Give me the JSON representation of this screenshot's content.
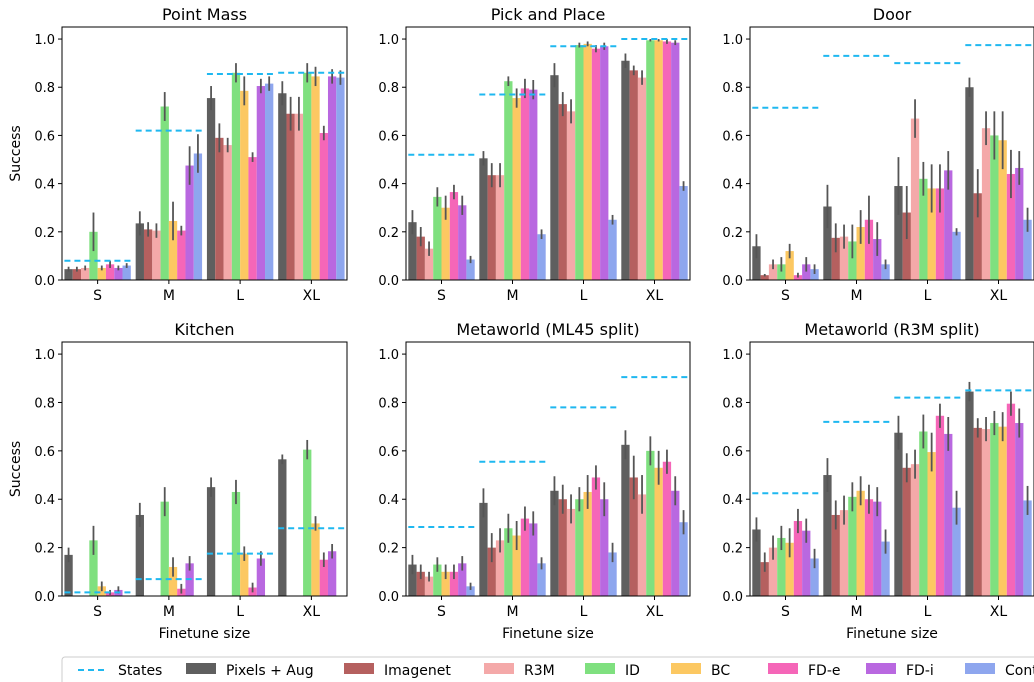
{
  "legend": {
    "entries": [
      "States",
      "Pixels + Aug",
      "Imagenet",
      "R3M",
      "ID",
      "BC",
      "FD-e",
      "FD-i",
      "Contr"
    ]
  },
  "colors": {
    "States": "#1fb8f0",
    "Pixels + Aug": "#5f5f5f",
    "Imagenet": "#b5605f",
    "R3M": "#f4a9a9",
    "ID": "#7fe07f",
    "BC": "#fcc862",
    "FD-e": "#f566b8",
    "FD-i": "#b968e0",
    "Contr": "#8ea6ee"
  },
  "chart_data": [
    {
      "type": "bar",
      "title": "Point Mass",
      "xlabel": "",
      "ylabel": "Success",
      "categories": [
        "S",
        "M",
        "L",
        "XL"
      ],
      "ylim": [
        0,
        1.05
      ],
      "yticks": [
        "0.0",
        "0.2",
        "0.4",
        "0.6",
        "0.8",
        "1.0"
      ],
      "states": [
        0.08,
        0.62,
        0.855,
        0.86
      ],
      "series": [
        {
          "name": "Pixels + Aug",
          "values": [
            0.045,
            0.235,
            0.755,
            0.775
          ],
          "err": [
            0.01,
            0.05,
            0.05,
            0.05
          ]
        },
        {
          "name": "Imagenet",
          "values": [
            0.045,
            0.21,
            0.59,
            0.69
          ],
          "err": [
            0.01,
            0.03,
            0.06,
            0.07
          ]
        },
        {
          "name": "R3M",
          "values": [
            0.05,
            0.205,
            0.56,
            0.69
          ],
          "err": [
            0.01,
            0.03,
            0.03,
            0.07
          ]
        },
        {
          "name": "ID",
          "values": [
            0.2,
            0.72,
            0.86,
            0.86
          ],
          "err": [
            0.08,
            0.06,
            0.04,
            0.04
          ]
        },
        {
          "name": "BC",
          "values": [
            0.05,
            0.245,
            0.785,
            0.845
          ],
          "err": [
            0.01,
            0.08,
            0.06,
            0.04
          ]
        },
        {
          "name": "FD-e",
          "values": [
            0.065,
            0.205,
            0.51,
            0.61
          ],
          "err": [
            0.015,
            0.02,
            0.02,
            0.03
          ]
        },
        {
          "name": "FD-i",
          "values": [
            0.05,
            0.475,
            0.805,
            0.845
          ],
          "err": [
            0.01,
            0.08,
            0.03,
            0.03
          ]
        },
        {
          "name": "Contr",
          "values": [
            0.06,
            0.525,
            0.815,
            0.84
          ],
          "err": [
            0.01,
            0.08,
            0.03,
            0.03
          ]
        }
      ]
    },
    {
      "type": "bar",
      "title": "Pick and Place",
      "xlabel": "",
      "ylabel": "",
      "categories": [
        "S",
        "M",
        "L",
        "XL"
      ],
      "ylim": [
        0,
        1.05
      ],
      "yticks": [
        "0.0",
        "0.2",
        "0.4",
        "0.6",
        "0.8",
        "1.0"
      ],
      "states": [
        0.52,
        0.77,
        0.97,
        1.0
      ],
      "series": [
        {
          "name": "Pixels + Aug",
          "values": [
            0.24,
            0.505,
            0.85,
            0.91
          ],
          "err": [
            0.05,
            0.03,
            0.05,
            0.03
          ]
        },
        {
          "name": "Imagenet",
          "values": [
            0.18,
            0.435,
            0.73,
            0.87
          ],
          "err": [
            0.04,
            0.05,
            0.05,
            0.02
          ]
        },
        {
          "name": "R3M",
          "values": [
            0.13,
            0.435,
            0.7,
            0.84
          ],
          "err": [
            0.03,
            0.05,
            0.05,
            0.03
          ]
        },
        {
          "name": "ID",
          "values": [
            0.345,
            0.825,
            0.975,
            0.995
          ],
          "err": [
            0.04,
            0.02,
            0.01,
            0.005
          ]
        },
        {
          "name": "BC",
          "values": [
            0.3,
            0.755,
            0.98,
            0.995
          ],
          "err": [
            0.05,
            0.04,
            0.01,
            0.005
          ]
        },
        {
          "name": "FD-e",
          "values": [
            0.365,
            0.795,
            0.96,
            0.99
          ],
          "err": [
            0.03,
            0.04,
            0.015,
            0.01
          ]
        },
        {
          "name": "FD-i",
          "values": [
            0.31,
            0.79,
            0.97,
            0.985
          ],
          "err": [
            0.04,
            0.04,
            0.015,
            0.01
          ]
        },
        {
          "name": "Contr",
          "values": [
            0.085,
            0.19,
            0.25,
            0.39
          ],
          "err": [
            0.015,
            0.02,
            0.02,
            0.02
          ]
        }
      ]
    },
    {
      "type": "bar",
      "title": "Door",
      "xlabel": "",
      "ylabel": "",
      "categories": [
        "S",
        "M",
        "L",
        "XL"
      ],
      "ylim": [
        0,
        1.05
      ],
      "yticks": [
        "0.0",
        "0.2",
        "0.4",
        "0.6",
        "0.8",
        "1.0"
      ],
      "states": [
        0.715,
        0.93,
        0.9,
        0.975
      ],
      "series": [
        {
          "name": "Pixels + Aug",
          "values": [
            0.14,
            0.305,
            0.39,
            0.8
          ],
          "err": [
            0.05,
            0.09,
            0.12,
            0.04
          ]
        },
        {
          "name": "Imagenet",
          "values": [
            0.02,
            0.175,
            0.28,
            0.36
          ],
          "err": [
            0.005,
            0.06,
            0.11,
            0.1
          ]
        },
        {
          "name": "R3M",
          "values": [
            0.065,
            0.18,
            0.67,
            0.63
          ],
          "err": [
            0.02,
            0.05,
            0.08,
            0.07
          ]
        },
        {
          "name": "ID",
          "values": [
            0.065,
            0.16,
            0.42,
            0.6
          ],
          "err": [
            0.03,
            0.07,
            0.07,
            0.1
          ]
        },
        {
          "name": "BC",
          "values": [
            0.12,
            0.22,
            0.38,
            0.58
          ],
          "err": [
            0.03,
            0.07,
            0.1,
            0.12
          ]
        },
        {
          "name": "FD-e",
          "values": [
            0.02,
            0.25,
            0.38,
            0.44
          ],
          "err": [
            0.01,
            0.1,
            0.1,
            0.1
          ]
        },
        {
          "name": "FD-i",
          "values": [
            0.065,
            0.17,
            0.455,
            0.465
          ],
          "err": [
            0.03,
            0.07,
            0.08,
            0.07
          ]
        },
        {
          "name": "Contr",
          "values": [
            0.045,
            0.065,
            0.2,
            0.25
          ],
          "err": [
            0.02,
            0.02,
            0.015,
            0.05
          ]
        }
      ]
    },
    {
      "type": "bar",
      "title": "Kitchen",
      "xlabel": "Finetune size",
      "ylabel": "Success",
      "categories": [
        "S",
        "M",
        "L",
        "XL"
      ],
      "ylim": [
        0,
        1.05
      ],
      "yticks": [
        "0.0",
        "0.2",
        "0.4",
        "0.6",
        "0.8",
        "1.0"
      ],
      "states": [
        0.015,
        0.07,
        0.175,
        0.28
      ],
      "series": [
        {
          "name": "Pixels + Aug",
          "values": [
            0.17,
            0.335,
            0.45,
            0.565
          ],
          "err": [
            0.03,
            0.05,
            0.04,
            0.02
          ]
        },
        {
          "name": "Imagenet",
          "values": [
            0.0,
            0.0,
            0.0,
            0.0
          ],
          "err": [
            0,
            0,
            0,
            0
          ]
        },
        {
          "name": "R3M",
          "values": [
            0.0,
            0.0,
            0.0,
            0.0
          ],
          "err": [
            0,
            0,
            0,
            0
          ]
        },
        {
          "name": "ID",
          "values": [
            0.23,
            0.39,
            0.43,
            0.605
          ],
          "err": [
            0.06,
            0.06,
            0.05,
            0.04
          ]
        },
        {
          "name": "BC",
          "values": [
            0.04,
            0.12,
            0.175,
            0.3
          ],
          "err": [
            0.02,
            0.04,
            0.03,
            0.03
          ]
        },
        {
          "name": "FD-e",
          "values": [
            0.015,
            0.03,
            0.035,
            0.15
          ],
          "err": [
            0.01,
            0.02,
            0.02,
            0.03
          ]
        },
        {
          "name": "FD-i",
          "values": [
            0.025,
            0.135,
            0.155,
            0.185
          ],
          "err": [
            0.015,
            0.03,
            0.03,
            0.03
          ]
        },
        {
          "name": "Contr",
          "values": [
            0.0,
            0.0,
            0.0,
            0.0
          ],
          "err": [
            0,
            0,
            0,
            0
          ]
        }
      ]
    },
    {
      "type": "bar",
      "title": "Metaworld (ML45 split)",
      "xlabel": "Finetune size",
      "ylabel": "",
      "categories": [
        "S",
        "M",
        "L",
        "XL"
      ],
      "ylim": [
        0,
        1.05
      ],
      "yticks": [
        "0.0",
        "0.2",
        "0.4",
        "0.6",
        "0.8",
        "1.0"
      ],
      "states": [
        0.285,
        0.555,
        0.78,
        0.905
      ],
      "series": [
        {
          "name": "Pixels + Aug",
          "values": [
            0.13,
            0.385,
            0.435,
            0.625
          ],
          "err": [
            0.04,
            0.06,
            0.06,
            0.06
          ]
        },
        {
          "name": "Imagenet",
          "values": [
            0.1,
            0.2,
            0.4,
            0.49
          ],
          "err": [
            0.03,
            0.06,
            0.06,
            0.09
          ]
        },
        {
          "name": "R3M",
          "values": [
            0.08,
            0.23,
            0.36,
            0.42
          ],
          "err": [
            0.02,
            0.05,
            0.06,
            0.08
          ]
        },
        {
          "name": "ID",
          "values": [
            0.13,
            0.28,
            0.4,
            0.6
          ],
          "err": [
            0.03,
            0.06,
            0.05,
            0.06
          ]
        },
        {
          "name": "BC",
          "values": [
            0.1,
            0.25,
            0.43,
            0.53
          ],
          "err": [
            0.03,
            0.06,
            0.07,
            0.07
          ]
        },
        {
          "name": "FD-e",
          "values": [
            0.1,
            0.32,
            0.49,
            0.555
          ],
          "err": [
            0.03,
            0.05,
            0.05,
            0.05
          ]
        },
        {
          "name": "FD-i",
          "values": [
            0.135,
            0.3,
            0.4,
            0.435
          ],
          "err": [
            0.03,
            0.05,
            0.07,
            0.06
          ]
        },
        {
          "name": "Contr",
          "values": [
            0.04,
            0.135,
            0.18,
            0.305
          ],
          "err": [
            0.015,
            0.025,
            0.04,
            0.05
          ]
        }
      ]
    },
    {
      "type": "bar",
      "title": "Metaworld (R3M split)",
      "xlabel": "Finetune size",
      "ylabel": "",
      "categories": [
        "S",
        "M",
        "L",
        "XL"
      ],
      "ylim": [
        0,
        1.05
      ],
      "yticks": [
        "0.0",
        "0.2",
        "0.4",
        "0.6",
        "0.8",
        "1.0"
      ],
      "states": [
        0.425,
        0.72,
        0.82,
        0.85
      ],
      "series": [
        {
          "name": "Pixels + Aug",
          "values": [
            0.275,
            0.5,
            0.675,
            0.845
          ],
          "err": [
            0.05,
            0.07,
            0.07,
            0.04
          ]
        },
        {
          "name": "Imagenet",
          "values": [
            0.14,
            0.335,
            0.53,
            0.695
          ],
          "err": [
            0.04,
            0.06,
            0.06,
            0.04
          ]
        },
        {
          "name": "R3M",
          "values": [
            0.2,
            0.355,
            0.545,
            0.69
          ],
          "err": [
            0.05,
            0.06,
            0.06,
            0.05
          ]
        },
        {
          "name": "ID",
          "values": [
            0.24,
            0.41,
            0.68,
            0.715
          ],
          "err": [
            0.05,
            0.06,
            0.07,
            0.05
          ]
        },
        {
          "name": "BC",
          "values": [
            0.22,
            0.435,
            0.595,
            0.7
          ],
          "err": [
            0.06,
            0.06,
            0.08,
            0.06
          ]
        },
        {
          "name": "FD-e",
          "values": [
            0.31,
            0.4,
            0.745,
            0.795
          ],
          "err": [
            0.05,
            0.06,
            0.05,
            0.05
          ]
        },
        {
          "name": "FD-i",
          "values": [
            0.27,
            0.39,
            0.67,
            0.715
          ],
          "err": [
            0.05,
            0.06,
            0.07,
            0.06
          ]
        },
        {
          "name": "Contr",
          "values": [
            0.155,
            0.225,
            0.365,
            0.395
          ],
          "err": [
            0.04,
            0.05,
            0.07,
            0.06
          ]
        }
      ]
    }
  ]
}
